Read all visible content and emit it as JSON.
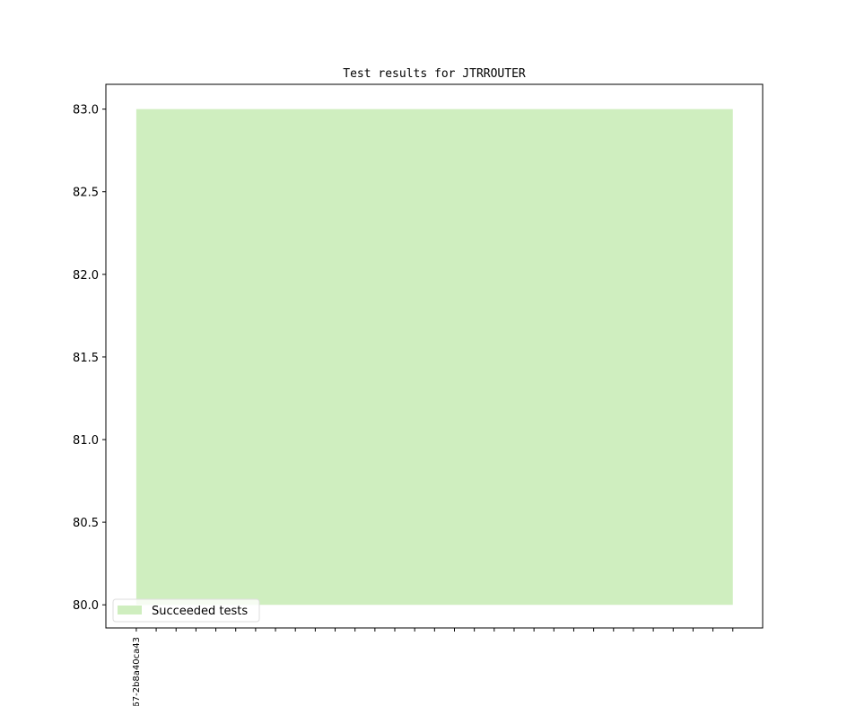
{
  "chart_data": {
    "type": "area",
    "title": "Test results for JTRROUTER",
    "xlabel": "",
    "ylabel": "",
    "x_tick_count": 31,
    "x_tick_labels": [
      "67-2b8a40ca43"
    ],
    "xlim": [
      -1.53,
      31.5
    ],
    "ylim": [
      79.86,
      83.15
    ],
    "y_ticks": [
      "80.0",
      "80.5",
      "81.0",
      "81.5",
      "82.0",
      "82.5",
      "83.0"
    ],
    "series": [
      {
        "name": "Succeeded tests",
        "color": "#cfeebf",
        "x": [
          0,
          30
        ],
        "y_top": [
          83.0,
          83.0
        ],
        "y_bottom": [
          80.0,
          80.0
        ]
      }
    ],
    "legend": {
      "placement": "lower-left",
      "entries": [
        "Succeeded tests"
      ]
    },
    "grid": false
  }
}
